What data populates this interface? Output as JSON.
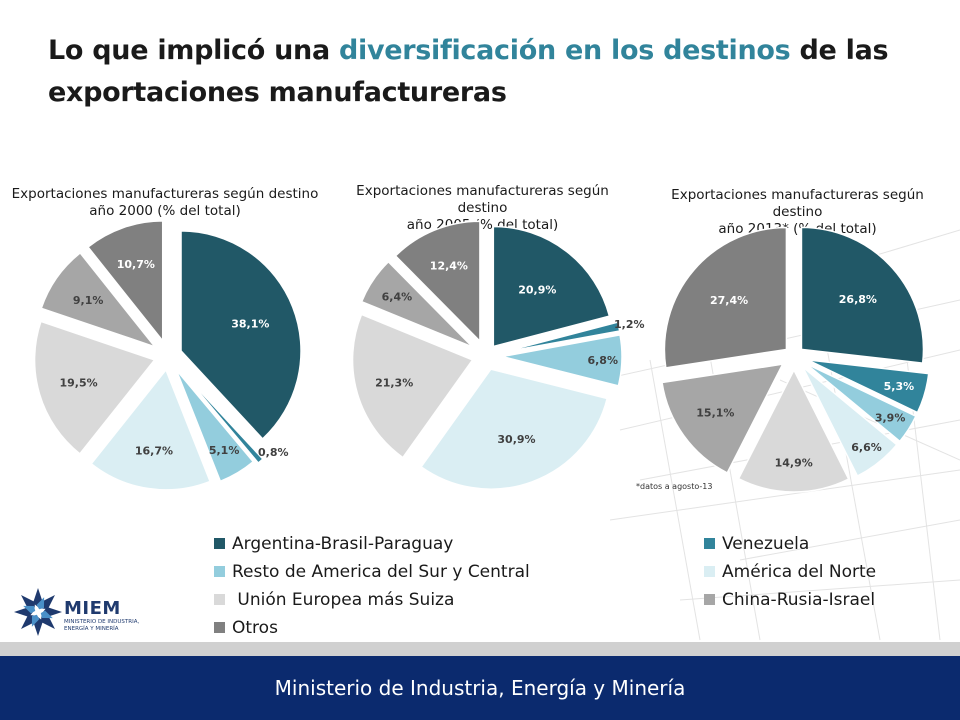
{
  "title": {
    "part1": "Lo que implicó una ",
    "highlight": "diversificación en los destinos",
    "part2": " de las exportaciones manufactureras"
  },
  "colors": {
    "Argentina-Brasil-Paraguay": "#215867",
    "Venezuela": "#31849b",
    "Resto de America del Sur y Central": "#93cddd",
    "América del Norte": "#daeef3",
    "Unión Europea más Suiza": "#d9d9d9",
    "China-Rusia-Israel": "#a6a6a6",
    "Otros": "#808080",
    "title_highlight": "#31849b",
    "footer": "#0b2a6e"
  },
  "chart_data": [
    {
      "type": "pie",
      "title_line1": "Exportaciones manufactureras según destino",
      "title_line2": "año 2000 (% del total)",
      "categories": [
        "Argentina-Brasil-Paraguay",
        "Venezuela",
        "Resto de America del Sur y Central",
        "América del Norte",
        "Unión Europea más Suiza",
        "China-Rusia-Israel",
        "Otros"
      ],
      "values": [
        38.1,
        0.8,
        5.1,
        16.7,
        19.5,
        9.1,
        10.7
      ],
      "labels": [
        "38,1%",
        "0,8%",
        "5,1%",
        "16,7%",
        "19,5%",
        "9,1%",
        "10,7%"
      ]
    },
    {
      "type": "pie",
      "title_line1": "Exportaciones manufactureras según destino",
      "title_line2": "año 2005 (% del total)",
      "categories": [
        "Argentina-Brasil-Paraguay",
        "Venezuela",
        "Resto de America del Sur y Central",
        "América del Norte",
        "Unión Europea más Suiza",
        "China-Rusia-Israel",
        "Otros"
      ],
      "values": [
        20.9,
        1.2,
        6.8,
        30.9,
        21.3,
        6.4,
        12.4
      ],
      "labels": [
        "20,9%",
        "1,2%",
        "6,8%",
        "30,9%",
        "21,3%",
        "6,4%",
        "12,4%"
      ]
    },
    {
      "type": "pie",
      "title_line1": "Exportaciones manufactureras según destino",
      "title_line2": "año 2013* (% del total)",
      "footnote": "*datos a agosto-13",
      "categories": [
        "Argentina-Brasil-Paraguay",
        "Venezuela",
        "Resto de America del Sur y Central",
        "América del Norte",
        "Unión Europea más Suiza",
        "China-Rusia-Israel",
        "Otros"
      ],
      "values": [
        26.8,
        5.3,
        3.9,
        6.6,
        14.9,
        15.1,
        27.4
      ],
      "labels": [
        "26,8%",
        "5,3%",
        "3,9%",
        "6,6%",
        "14,9%",
        "15,1%",
        "27,4%"
      ]
    }
  ],
  "legend": [
    {
      "label": "Argentina-Brasil-Paraguay",
      "color": "#215867"
    },
    {
      "label": "Venezuela",
      "color": "#31849b"
    },
    {
      "label": "Resto de America del Sur y Central",
      "color": "#93cddd"
    },
    {
      "label": "América del Norte",
      "color": "#daeef3"
    },
    {
      "label": " Unión Europea más Suiza",
      "color": "#d9d9d9"
    },
    {
      "label": "China-Rusia-Israel",
      "color": "#a6a6a6"
    },
    {
      "label": "Otros",
      "color": "#808080"
    }
  ],
  "logo": {
    "name": "MIEM",
    "subtitle": "MINISTERIO DE INDUSTRIA, ENERGÍA Y MINERÍA",
    "icon": "star-logo-icon"
  },
  "footer": {
    "text": "Ministerio de Industria, Energía y Minería"
  }
}
